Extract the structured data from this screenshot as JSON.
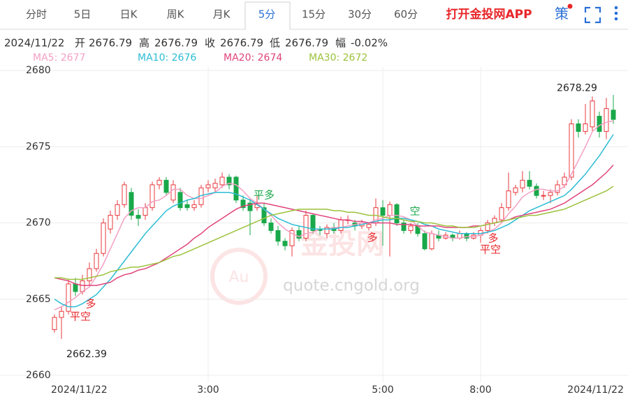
{
  "tabs": [
    "分时",
    "5日",
    "日K",
    "周K",
    "月K",
    "5分",
    "15分",
    "30分",
    "60分"
  ],
  "active_tab": "5分",
  "app_link": "打开金投网APP",
  "strategy": "策",
  "info": {
    "date": "2024/11/22",
    "fields": [
      {
        "label": "开",
        "value": 2676.79
      },
      {
        "label": "高",
        "value": 2676.79
      },
      {
        "label": "收",
        "value": 2676.79
      },
      {
        "label": "低",
        "value": 2676.79
      },
      {
        "label": "幅",
        "value": "-0.02%"
      }
    ]
  },
  "watermark": {
    "brand": "金投网",
    "symbol": "Au",
    "url": "quote.cngold.org"
  },
  "chart_data": {
    "type": "candlestick",
    "categories": [
      "2024/11/22",
      null,
      null,
      null,
      null,
      null,
      null,
      null,
      null,
      null,
      null,
      null,
      null,
      null,
      null,
      null,
      null,
      null,
      null,
      null,
      null,
      null,
      "3:00",
      null,
      null,
      null,
      null,
      null,
      null,
      null,
      null,
      null,
      null,
      null,
      null,
      null,
      null,
      null,
      null,
      null,
      null,
      null,
      null,
      null,
      null,
      null,
      null,
      "5:00",
      null,
      null,
      null,
      null,
      null,
      null,
      null,
      null,
      null,
      null,
      null,
      null,
      null,
      "8:00",
      null,
      null,
      null,
      null,
      null,
      null,
      null,
      null,
      null,
      null,
      null,
      null,
      null,
      null,
      null,
      null,
      null,
      null,
      "2024/11/22"
    ],
    "open": [
      2663.0,
      2663.8,
      2664.2,
      2666.0,
      2665.5,
      2666.2,
      2667.0,
      2668.0,
      2669.6,
      2670.5,
      2671.2,
      2672.0,
      2670.5,
      2670.5,
      2671.0,
      2672.5,
      2672.8,
      2671.5,
      2672.0,
      2671.2,
      2671.0,
      2671.2,
      2672.3,
      2672.3,
      2672.5,
      2673.0,
      2673.0,
      2671.5,
      2671.3,
      2671.0,
      2671.0,
      2670.0,
      2669.5,
      2668.8,
      2668.5,
      2669.5,
      2669.0,
      2670.5,
      2669.6,
      2669.3,
      2669.7,
      2669.5,
      2670.2,
      2670.0,
      2669.8,
      2669.7,
      2670.0,
      2671.0,
      2670.5,
      2671.2,
      2670.0,
      2669.5,
      2669.8,
      2669.3,
      2668.3,
      2669.2,
      2669.0,
      2669.2,
      2669.0,
      2669.3,
      2669.0,
      2669.2,
      2669.5,
      2670.0,
      2670.2,
      2671.0,
      2672.0,
      2672.3,
      2672.8,
      2672.4,
      2671.8,
      2671.8,
      2672.0,
      2672.5,
      2673.0,
      2676.5,
      2676.0,
      2676.3,
      2677.0,
      2676.0,
      2677.4
    ],
    "high": [
      2664.0,
      2664.5,
      2666.3,
      2666.4,
      2666.6,
      2667.4,
      2668.3,
      2670.3,
      2670.8,
      2671.5,
      2672.7,
      2672.3,
      2670.9,
      2671.3,
      2672.7,
      2673.0,
      2673.0,
      2672.8,
      2672.3,
      2671.5,
      2671.5,
      2672.5,
      2672.8,
      2672.9,
      2673.3,
      2673.2,
      2673.1,
      2671.8,
      2671.6,
      2671.8,
      2671.3,
      2670.3,
      2669.8,
      2669.0,
      2669.7,
      2669.8,
      2670.8,
      2670.6,
      2669.8,
      2669.9,
      2670.0,
      2670.4,
      2670.5,
      2670.2,
      2670.2,
      2670.0,
      2671.6,
      2671.5,
      2671.4,
      2671.3,
      2670.2,
      2670.0,
      2670.0,
      2669.5,
      2669.5,
      2669.5,
      2669.4,
      2669.3,
      2669.5,
      2669.4,
      2669.4,
      2669.7,
      2670.2,
      2670.5,
      2671.3,
      2673.3,
      2672.5,
      2673.4,
      2673.4,
      2672.6,
      2672.1,
      2672.2,
      2672.8,
      2673.3,
      2676.8,
      2676.8,
      2677.8,
      2678.29,
      2677.3,
      2678.2,
      2678.4
    ],
    "low": [
      2662.8,
      2662.39,
      2664.0,
      2665.2,
      2665.3,
      2665.9,
      2666.8,
      2667.8,
      2669.3,
      2670.2,
      2671.0,
      2670.2,
      2669.8,
      2670.2,
      2670.8,
      2672.2,
      2671.8,
      2671.3,
      2670.8,
      2670.8,
      2670.8,
      2671.0,
      2672.0,
      2672.0,
      2672.3,
      2672.2,
      2671.3,
      2670.8,
      2669.2,
      2670.8,
      2669.8,
      2669.3,
      2668.5,
      2668.2,
      2667.8,
      2668.8,
      2668.8,
      2669.3,
      2669.2,
      2669.0,
      2669.3,
      2669.3,
      2669.9,
      2669.5,
      2669.6,
      2669.5,
      2669.8,
      2668.5,
      2667.8,
      2669.8,
      2669.3,
      2669.3,
      2669.1,
      2668.2,
      2668.2,
      2668.8,
      2668.9,
      2668.8,
      2668.9,
      2668.8,
      2668.9,
      2668.7,
      2669.3,
      2669.8,
      2670.0,
      2670.8,
      2671.8,
      2672.0,
      2672.2,
      2671.6,
      2671.5,
      2671.3,
      2671.8,
      2672.3,
      2672.8,
      2675.6,
      2675.8,
      2676.0,
      2675.6,
      2675.5,
      2676.5
    ],
    "close": [
      2663.8,
      2664.2,
      2666.0,
      2665.5,
      2666.2,
      2667.0,
      2668.0,
      2670.0,
      2670.5,
      2671.2,
      2672.5,
      2670.5,
      2670.3,
      2671.0,
      2672.5,
      2672.8,
      2672.0,
      2672.5,
      2671.0,
      2671.0,
      2671.2,
      2672.3,
      2672.5,
      2672.6,
      2673.0,
      2672.5,
      2671.5,
      2671.0,
      2670.8,
      2671.2,
      2670.0,
      2669.5,
      2668.8,
      2668.5,
      2669.5,
      2669.0,
      2670.5,
      2669.5,
      2669.5,
      2669.7,
      2669.5,
      2670.2,
      2670.2,
      2669.8,
      2670.0,
      2669.9,
      2671.0,
      2670.5,
      2671.2,
      2670.0,
      2669.5,
      2669.8,
      2669.3,
      2668.3,
      2669.3,
      2669.0,
      2669.2,
      2669.0,
      2669.3,
      2669.0,
      2669.2,
      2669.5,
      2670.0,
      2670.3,
      2671.0,
      2672.1,
      2672.3,
      2672.8,
      2672.4,
      2671.8,
      2671.8,
      2672.0,
      2672.5,
      2673.0,
      2676.5,
      2676.0,
      2676.5,
      2678.0,
      2676.0,
      2677.5,
      2676.79
    ],
    "up_color": "#e8383d",
    "down_color": "#19a84a",
    "series": [
      {
        "name": "MA5: 2677",
        "color": "#f3a0c4",
        "values": [
          2664.3,
          2664.5,
          2664.8,
          2665.1,
          2665.5,
          2665.8,
          2666.5,
          2667.3,
          2668.3,
          2669.3,
          2670.3,
          2670.8,
          2671.0,
          2671.0,
          2671.4,
          2671.5,
          2671.8,
          2672.2,
          2672.2,
          2671.8,
          2671.6,
          2671.6,
          2671.8,
          2672.0,
          2672.4,
          2672.6,
          2672.5,
          2672.1,
          2671.6,
          2671.3,
          2670.9,
          2670.5,
          2670.0,
          2669.6,
          2669.3,
          2669.1,
          2669.3,
          2669.4,
          2669.6,
          2669.6,
          2669.7,
          2669.7,
          2669.8,
          2669.9,
          2670.0,
          2670.0,
          2670.2,
          2670.3,
          2670.5,
          2670.5,
          2670.4,
          2670.2,
          2669.8,
          2669.4,
          2669.3,
          2669.2,
          2669.1,
          2669.0,
          2669.0,
          2669.1,
          2669.1,
          2669.2,
          2669.4,
          2669.6,
          2670.0,
          2670.6,
          2671.1,
          2671.7,
          2672.0,
          2672.2,
          2672.2,
          2672.1,
          2672.1,
          2672.4,
          2673.2,
          2674.1,
          2675.0,
          2676.0,
          2676.4,
          2676.6,
          2676.7
        ]
      },
      {
        "name": "MA10: 2676",
        "color": "#2bbcd4",
        "values": [
          2665.0,
          2664.7,
          2664.5,
          2664.5,
          2664.7,
          2665.0,
          2665.3,
          2665.8,
          2666.3,
          2666.9,
          2667.5,
          2668.1,
          2668.7,
          2669.3,
          2669.8,
          2670.3,
          2670.8,
          2671.1,
          2671.3,
          2671.5,
          2671.6,
          2671.8,
          2671.9,
          2672.0,
          2672.0,
          2672.0,
          2671.9,
          2671.7,
          2671.5,
          2671.2,
          2670.9,
          2670.6,
          2670.3,
          2670.1,
          2669.9,
          2669.8,
          2669.7,
          2669.6,
          2669.6,
          2669.6,
          2669.6,
          2669.7,
          2669.7,
          2669.8,
          2669.9,
          2670.0,
          2670.1,
          2670.2,
          2670.2,
          2670.3,
          2670.3,
          2670.2,
          2670.1,
          2669.9,
          2669.8,
          2669.6,
          2669.5,
          2669.4,
          2669.3,
          2669.3,
          2669.3,
          2669.3,
          2669.4,
          2669.5,
          2669.7,
          2669.9,
          2670.2,
          2670.5,
          2670.8,
          2671.0,
          2671.2,
          2671.4,
          2671.6,
          2671.8,
          2672.2,
          2672.7,
          2673.2,
          2673.8,
          2674.4,
          2675.1,
          2675.8
        ]
      },
      {
        "name": "MA20: 2674",
        "color": "#e0447c",
        "values": [
          2666.4,
          2666.3,
          2666.2,
          2666.0,
          2665.9,
          2665.9,
          2665.9,
          2666.0,
          2666.1,
          2666.4,
          2666.6,
          2666.7,
          2666.9,
          2667.0,
          2667.2,
          2667.4,
          2667.7,
          2668.0,
          2668.3,
          2668.6,
          2669.0,
          2669.3,
          2669.7,
          2670.0,
          2670.3,
          2670.6,
          2670.9,
          2671.1,
          2671.2,
          2671.3,
          2671.3,
          2671.2,
          2671.1,
          2671.0,
          2670.9,
          2670.8,
          2670.7,
          2670.6,
          2670.5,
          2670.4,
          2670.3,
          2670.2,
          2670.2,
          2670.1,
          2670.1,
          2670.0,
          2670.0,
          2670.0,
          2670.0,
          2669.9,
          2669.9,
          2669.9,
          2669.8,
          2669.8,
          2669.8,
          2669.8,
          2669.7,
          2669.7,
          2669.7,
          2669.7,
          2669.8,
          2669.8,
          2669.9,
          2670.0,
          2670.1,
          2670.2,
          2670.4,
          2670.5,
          2670.6,
          2670.7,
          2670.8,
          2670.9,
          2671.1,
          2671.3,
          2671.6,
          2671.9,
          2672.2,
          2672.5,
          2672.9,
          2673.3,
          2673.8
        ]
      },
      {
        "name": "MA30: 2672",
        "color": "#9cc23b",
        "values": [
          2666.4,
          2666.4,
          2666.3,
          2666.3,
          2666.3,
          2666.4,
          2666.5,
          2666.6,
          2666.8,
          2666.9,
          2667.0,
          2667.1,
          2667.1,
          2667.2,
          2667.3,
          2667.4,
          2667.6,
          2667.8,
          2667.9,
          2668.1,
          2668.3,
          2668.5,
          2668.7,
          2668.9,
          2669.1,
          2669.3,
          2669.5,
          2669.7,
          2669.9,
          2670.1,
          2670.3,
          2670.5,
          2670.6,
          2670.7,
          2670.8,
          2670.9,
          2670.9,
          2670.9,
          2670.9,
          2670.9,
          2670.8,
          2670.8,
          2670.7,
          2670.7,
          2670.6,
          2670.5,
          2670.5,
          2670.4,
          2670.3,
          2670.3,
          2670.2,
          2670.1,
          2670.1,
          2670.0,
          2670.0,
          2669.9,
          2669.8,
          2669.8,
          2669.7,
          2669.7,
          2669.7,
          2669.8,
          2669.9,
          2670.0,
          2670.1,
          2670.2,
          2670.3,
          2670.4,
          2670.5,
          2670.5,
          2670.6,
          2670.7,
          2670.8,
          2670.9,
          2671.1,
          2671.3,
          2671.5,
          2671.7,
          2671.9,
          2672.1,
          2672.4
        ]
      }
    ],
    "ylim": [
      2660,
      2680
    ],
    "yticks": [
      2660,
      2665,
      2670,
      2675,
      2680
    ],
    "grid": true,
    "annotations": [
      {
        "text": "平空"
      },
      {
        "text": "多"
      },
      {
        "text": "平多"
      },
      {
        "text": "多"
      },
      {
        "text": "空"
      },
      {
        "text": "平空"
      },
      {
        "text": "多"
      }
    ]
  }
}
